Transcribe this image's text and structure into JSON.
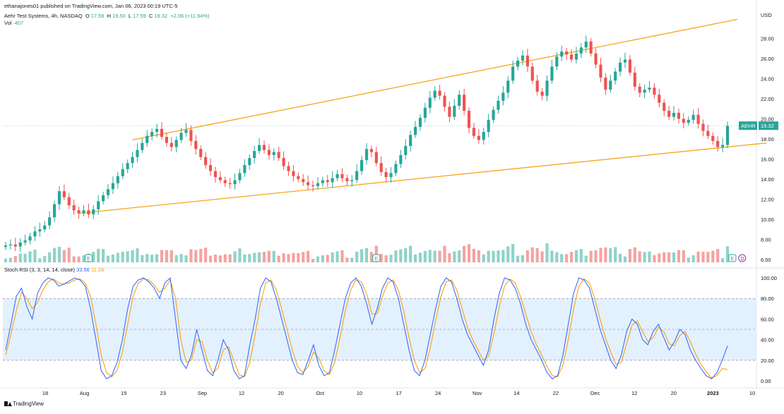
{
  "header": {
    "published": "ethanajones01 published on TradingView.com, Jan 06, 2023 00:19 UTC-5",
    "symbol_desc": "Aehr Test Systems, 4h, NASDAQ",
    "ohlc": {
      "o_label": "O",
      "o": "17.59",
      "h_label": "H",
      "h": "19.50",
      "l_label": "L",
      "l": "17.59",
      "c_label": "C",
      "c": "19.32",
      "change": "+2.06 (+11.94%)"
    },
    "vol_label": "Vol",
    "vol": "407"
  },
  "price_axis": {
    "currency": "USD",
    "ticks": [
      "28.00",
      "26.00",
      "24.00",
      "22.00",
      "20.00",
      "18.00",
      "16.00",
      "14.00",
      "12.00",
      "10.00",
      "8.00",
      "6.00"
    ]
  },
  "last_price": {
    "symbol": "AEHR",
    "value": "19.32"
  },
  "indicator": {
    "label": "Stoch RSI (3, 3, 14, 14, close)",
    "k": "33.56",
    "d": "11.26",
    "ticks": [
      "100.00",
      "80.00",
      "60.00",
      "40.00",
      "20.00",
      "0.00"
    ]
  },
  "time_axis": [
    "18",
    "Aug",
    "15",
    "23",
    "Sep",
    "12",
    "20",
    "Oct",
    "10",
    "17",
    "24",
    "Nov",
    "14",
    "22",
    "Dec",
    "12",
    "20",
    "2023",
    "10"
  ],
  "event_badges": [
    "E",
    "E",
    "E",
    "D"
  ],
  "branding": "TradingView",
  "colors": {
    "up": "#26a69a",
    "down": "#ef5350",
    "up_vol": "#8fd3c8",
    "down_vol": "#f4a3a1",
    "trendline": "#f7a51c",
    "stoch_k": "#2962ff",
    "stoch_d": "#ff9800",
    "band": "#e3f0fd"
  },
  "chart_data": [
    {
      "type": "candlestick",
      "title": "Aehr Test Systems, 4h, NASDAQ",
      "ylabel": "USD",
      "ylim": [
        6,
        30
      ],
      "closes": [
        7.4,
        7.5,
        7.3,
        7.7,
        7.9,
        8.3,
        8.8,
        9.0,
        9.4,
        10.2,
        11.5,
        12.8,
        12.2,
        11.4,
        10.9,
        10.6,
        10.9,
        10.5,
        11.0,
        11.8,
        12.4,
        13.0,
        13.6,
        14.3,
        15.0,
        15.6,
        16.2,
        16.9,
        17.6,
        18.3,
        18.7,
        19.0,
        18.2,
        17.6,
        17.2,
        17.9,
        18.6,
        18.9,
        17.8,
        17.0,
        16.2,
        15.4,
        14.8,
        14.2,
        13.9,
        13.6,
        13.5,
        13.9,
        14.6,
        15.4,
        16.1,
        16.8,
        17.4,
        16.9,
        16.4,
        16.7,
        16.1,
        15.3,
        14.8,
        14.3,
        14.0,
        13.7,
        13.4,
        13.3,
        13.6,
        13.9,
        13.7,
        14.1,
        14.5,
        14.1,
        13.8,
        13.9,
        14.8,
        15.9,
        17.0,
        16.7,
        15.6,
        14.7,
        14.2,
        14.6,
        15.5,
        16.4,
        17.3,
        18.4,
        19.2,
        20.1,
        21.1,
        22.1,
        22.8,
        22.3,
        21.2,
        20.2,
        21.3,
        22.4,
        20.8,
        19.1,
        18.3,
        17.9,
        18.7,
        19.9,
        20.9,
        21.8,
        22.6,
        23.8,
        25.2,
        25.8,
        26.3,
        25.2,
        23.8,
        22.7,
        22.3,
        23.8,
        25.2,
        26.2,
        26.7,
        26.4,
        25.9,
        26.5,
        27.1,
        27.7,
        26.5,
        25.4,
        24.1,
        22.9,
        23.8,
        24.7,
        25.6,
        25.9,
        24.6,
        23.2,
        22.6,
        22.9,
        23.1,
        22.4,
        21.6,
        20.8,
        20.2,
        20.6,
        20.0,
        19.6,
        19.9,
        20.4,
        19.5,
        18.8,
        18.3,
        17.8,
        17.2,
        17.4,
        19.3
      ]
    },
    {
      "type": "bar",
      "title": "Vol",
      "note": "volume histogram drawn from closes direction"
    },
    {
      "type": "line",
      "title": "Stoch RSI (3, 3, 14, 14, close)",
      "ylim": [
        0,
        100
      ],
      "bands": [
        20,
        50,
        80
      ],
      "series": [
        {
          "name": "K",
          "values": [
            30,
            55,
            82,
            90,
            72,
            60,
            85,
            95,
            100,
            98,
            92,
            94,
            97,
            100,
            98,
            92,
            70,
            40,
            10,
            2,
            5,
            18,
            40,
            70,
            92,
            98,
            100,
            96,
            90,
            80,
            95,
            100,
            60,
            20,
            12,
            25,
            50,
            30,
            10,
            5,
            20,
            40,
            30,
            10,
            2,
            5,
            35,
            60,
            90,
            100,
            96,
            80,
            60,
            40,
            20,
            8,
            6,
            20,
            35,
            15,
            5,
            8,
            30,
            55,
            80,
            95,
            100,
            92,
            75,
            55,
            70,
            90,
            100,
            96,
            80,
            55,
            30,
            10,
            5,
            20,
            45,
            70,
            92,
            100,
            96,
            80,
            60,
            45,
            35,
            25,
            15,
            30,
            60,
            85,
            100,
            98,
            90,
            75,
            55,
            40,
            30,
            20,
            8,
            2,
            5,
            25,
            55,
            85,
            100,
            98,
            90,
            70,
            50,
            35,
            20,
            12,
            25,
            48,
            60,
            55,
            40,
            35,
            48,
            55,
            42,
            30,
            38,
            50,
            45,
            30,
            20,
            12,
            5,
            2,
            8,
            20,
            34
          ]
        },
        {
          "name": "D",
          "values": [
            25,
            45,
            68,
            86,
            80,
            70,
            76,
            88,
            96,
            99,
            95,
            94,
            95,
            98,
            99,
            95,
            82,
            55,
            25,
            8,
            4,
            10,
            28,
            55,
            82,
            95,
            99,
            98,
            93,
            86,
            90,
            98,
            80,
            40,
            18,
            20,
            40,
            38,
            20,
            8,
            12,
            30,
            33,
            20,
            6,
            4,
            18,
            45,
            75,
            95,
            98,
            88,
            70,
            50,
            30,
            14,
            8,
            14,
            28,
            22,
            10,
            6,
            18,
            42,
            68,
            88,
            98,
            96,
            85,
            65,
            65,
            82,
            95,
            98,
            88,
            68,
            42,
            20,
            8,
            12,
            32,
            58,
            82,
            96,
            98,
            88,
            70,
            52,
            40,
            30,
            20,
            24,
            46,
            72,
            92,
            99,
            95,
            82,
            65,
            48,
            35,
            25,
            14,
            5,
            4,
            15,
            40,
            70,
            92,
            99,
            95,
            80,
            60,
            42,
            28,
            16,
            18,
            36,
            54,
            58,
            48,
            38,
            42,
            52,
            48,
            36,
            34,
            44,
            48,
            38,
            26,
            16,
            9,
            3,
            5,
            12,
            11
          ]
        }
      ]
    }
  ]
}
